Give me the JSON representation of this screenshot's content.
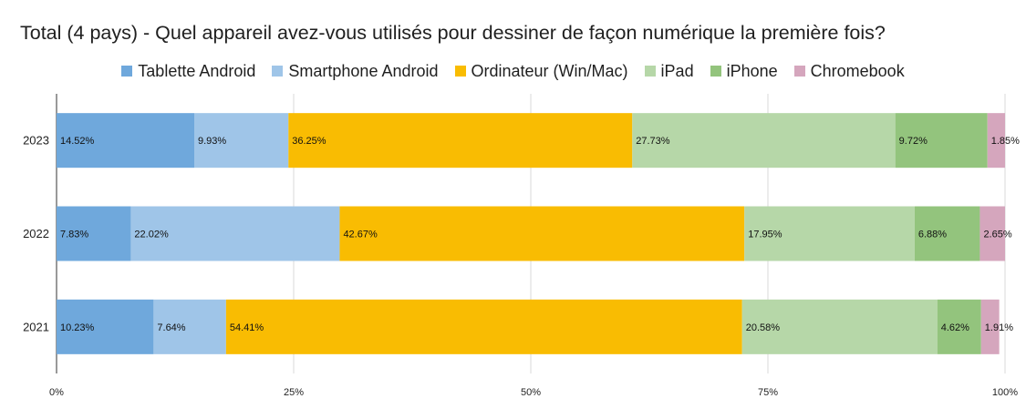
{
  "chart_data": {
    "type": "bar",
    "orientation": "horizontal",
    "stacked": true,
    "normalized": true,
    "title": "Total (4 pays) - Quel appareil avez-vous utilisés pour dessiner de façon numérique la première fois?",
    "categories": [
      "2023",
      "2022",
      "2021"
    ],
    "series": [
      {
        "name": "Tablette Android",
        "color": "#6fa8dc",
        "values": [
          14.52,
          7.83,
          10.23
        ],
        "labels": [
          "14.52%",
          "7.83%",
          "10.23%"
        ]
      },
      {
        "name": "Smartphone Android",
        "color": "#9fc5e8",
        "values": [
          9.93,
          22.02,
          7.64
        ],
        "labels": [
          "9.93%",
          "22.02%",
          "7.64%"
        ]
      },
      {
        "name": "Ordinateur (Win/Mac)",
        "color": "#f9bc02",
        "values": [
          36.25,
          42.67,
          54.41
        ],
        "labels": [
          "36.25%",
          "42.67%",
          "54.41%"
        ]
      },
      {
        "name": "iPad",
        "color": "#b6d7a8",
        "values": [
          27.73,
          17.95,
          20.58
        ],
        "labels": [
          "27.73%",
          "17.95%",
          "20.58%"
        ]
      },
      {
        "name": "iPhone",
        "color": "#93c47d",
        "values": [
          9.72,
          6.88,
          4.62
        ],
        "labels": [
          "9.72%",
          "6.88%",
          "4.62%"
        ]
      },
      {
        "name": "Chromebook",
        "color": "#d5a6bd",
        "values": [
          1.85,
          2.65,
          1.91
        ],
        "labels": [
          "1.85%",
          "2.65%",
          "1.91%"
        ]
      }
    ],
    "x_ticks": [
      "0%",
      "25%",
      "50%",
      "75%",
      "100%"
    ],
    "xlim": [
      0,
      100
    ],
    "grid": true,
    "legend_position": "top"
  }
}
